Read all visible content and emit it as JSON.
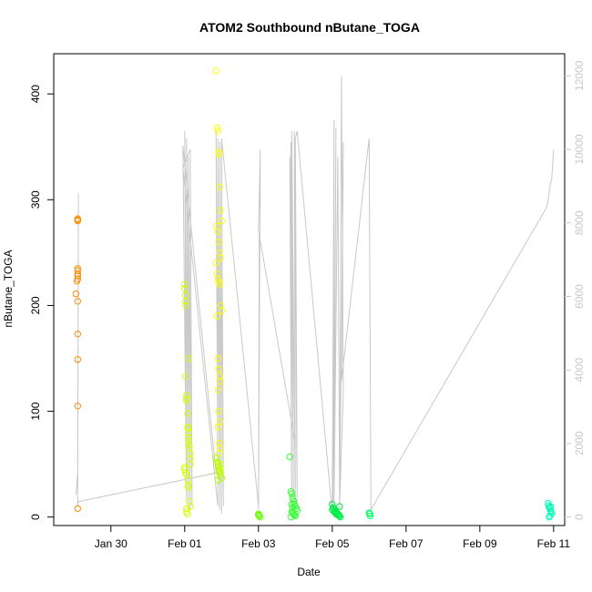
{
  "chart_data": {
    "type": "scatter",
    "title": "ATOM2 Southbound nButane_TOGA",
    "xlabel": "Date",
    "ylabel": "nButane_TOGA",
    "x_unit": "days since Jan 29",
    "xlim": [
      -0.55,
      13.3
    ],
    "ylim": [
      -8,
      438
    ],
    "x_ticks": [
      {
        "label": "Jan 30",
        "value": 1
      },
      {
        "label": "Feb 01",
        "value": 3
      },
      {
        "label": "Feb 03",
        "value": 5
      },
      {
        "label": "Feb 05",
        "value": 7
      },
      {
        "label": "Feb 07",
        "value": 9
      },
      {
        "label": "Feb 09",
        "value": 11
      },
      {
        "label": "Feb 11",
        "value": 13
      }
    ],
    "y_ticks": [
      0,
      100,
      200,
      300,
      400
    ],
    "y2_ticks": [
      0,
      2000,
      4000,
      6000,
      8000,
      10000,
      12000
    ],
    "y2lim": [
      -230,
      12600
    ],
    "grid": false,
    "series": [
      {
        "color": "#ff8c00",
        "x": [
          0.05,
          0.08,
          0.1,
          0.1,
          0.1,
          0.1,
          0.1,
          0.1,
          0.1,
          0.1,
          0.1,
          0.1,
          0.1,
          0.1,
          0.1
        ],
        "y": [
          211,
          223,
          225,
          228,
          233,
          235,
          230,
          204,
          173,
          149,
          105,
          8,
          280,
          281,
          282
        ]
      },
      {
        "color": "#d4ff00",
        "x": [
          3.0,
          3.0,
          3.02,
          3.02,
          3.03,
          3.05,
          3.05,
          3.05,
          3.08,
          3.08,
          3.1,
          3.1,
          3.1,
          3.1,
          3.12,
          3.12,
          3.15,
          3.15,
          3.15,
          3.0,
          3.0,
          3.02,
          3.05,
          3.08,
          3.1,
          3.1,
          3.12,
          3.15,
          3.05,
          3.05,
          3.08,
          3.02,
          3.1
        ],
        "y": [
          220,
          216,
          210,
          204,
          200,
          115,
          112,
          110,
          98,
          85,
          84,
          80,
          75,
          72,
          68,
          65,
          60,
          55,
          50,
          47,
          45,
          42,
          40,
          35,
          30,
          28,
          15,
          10,
          8,
          5,
          3,
          133,
          150
        ]
      },
      {
        "color": "#ffff00",
        "x": [
          3.85,
          3.88,
          3.9,
          3.92,
          3.93,
          3.95,
          3.97,
          4.0,
          3.87,
          3.9,
          3.92,
          3.95,
          3.98,
          3.85,
          3.88,
          3.9,
          3.93,
          3.95,
          3.97,
          4.0,
          3.88,
          3.9,
          3.92,
          3.95,
          3.97,
          3.9,
          3.92,
          3.95,
          3.9,
          3.93,
          3.95,
          3.92,
          3.95,
          3.97
        ],
        "y": [
          422,
          368,
          365,
          345,
          343,
          312,
          290,
          280,
          275,
          270,
          260,
          250,
          245,
          240,
          230,
          225,
          222,
          220,
          200,
          195,
          190,
          150,
          140,
          133,
          128,
          120,
          100,
          90,
          85,
          70,
          65,
          60,
          50,
          45
        ]
      },
      {
        "color": "#b3ff00",
        "x": [
          3.85,
          3.88,
          3.9,
          3.92,
          3.93,
          3.95,
          3.97,
          4.0,
          3.9,
          3.93
        ],
        "y": [
          56,
          52,
          50,
          48,
          45,
          43,
          40,
          37,
          35,
          42
        ]
      },
      {
        "color": "#66ff00",
        "x": [
          5.0,
          5.02,
          5.05,
          5.0
        ],
        "y": [
          2,
          1,
          0,
          3
        ]
      },
      {
        "color": "#33ff33",
        "x": [
          5.85,
          5.88,
          5.9,
          5.92,
          5.95,
          5.97,
          6.0,
          6.03,
          6.05,
          5.9,
          5.92,
          5.95,
          5.97,
          6.0,
          5.88,
          5.9,
          5.92
        ],
        "y": [
          57,
          24,
          22,
          18,
          15,
          12,
          10,
          8,
          6,
          5,
          4,
          3,
          2,
          1,
          0,
          12,
          9
        ]
      },
      {
        "color": "#00ee44",
        "x": [
          7.0,
          7.02,
          7.05,
          7.08,
          7.1,
          7.12,
          7.15,
          7.18,
          7.2,
          7.22,
          7.0,
          7.05,
          7.1,
          7.15,
          7.2
        ],
        "y": [
          12,
          9,
          8,
          6,
          5,
          4,
          3,
          2,
          1,
          0,
          7,
          5,
          3,
          2,
          10
        ]
      },
      {
        "color": "#00ff66",
        "x": [
          8.0,
          8.02,
          8.03
        ],
        "y": [
          4,
          3,
          1
        ]
      },
      {
        "color": "#00ffb3",
        "x": [
          12.85,
          12.87,
          12.88,
          12.9,
          12.92,
          12.93,
          12.95,
          12.9,
          12.88,
          12.92
        ],
        "y": [
          13,
          11,
          9,
          8,
          6,
          5,
          3,
          1,
          0,
          10
        ]
      }
    ],
    "secondary_line": {
      "color": "#c8c8c8",
      "x": [
        0.05,
        0.1,
        0.12,
        0.1,
        0.12,
        3.85,
        2.95,
        3.05,
        3.0,
        3.1,
        3.05,
        3.15,
        3.1,
        3.2,
        3.15,
        2.95,
        3.9,
        3.85,
        3.95,
        3.9,
        4.0,
        3.95,
        4.05,
        4.0,
        5.0,
        5.02,
        5.0,
        5.05,
        5.0,
        6.0,
        5.85,
        5.9,
        5.88,
        5.95,
        5.9,
        6.0,
        5.97,
        6.05,
        6.0,
        6.05,
        7.0,
        7.05,
        7.02,
        7.1,
        7.05,
        7.15,
        7.2,
        7.25,
        7.3,
        7.2,
        7.3,
        7.25,
        8.0,
        8.05,
        12.8,
        12.85,
        12.9,
        12.95,
        13.0
      ],
      "y2": [
        600,
        1200,
        8800,
        300,
        420,
        1200,
        10100,
        500,
        10500,
        300,
        10300,
        200,
        9800,
        300,
        10000,
        9500,
        300,
        10500,
        200,
        10300,
        100,
        10200,
        300,
        10300,
        300,
        7700,
        200,
        10000,
        7800,
        2000,
        9800,
        200,
        10200,
        300,
        10500,
        200,
        10500,
        400,
        10300,
        10500,
        100,
        10800,
        200,
        10600,
        400,
        9800,
        200,
        12000,
        3400,
        300,
        10200,
        3700,
        10300,
        200,
        8400,
        8600,
        9000,
        9200,
        10000
      ]
    }
  }
}
